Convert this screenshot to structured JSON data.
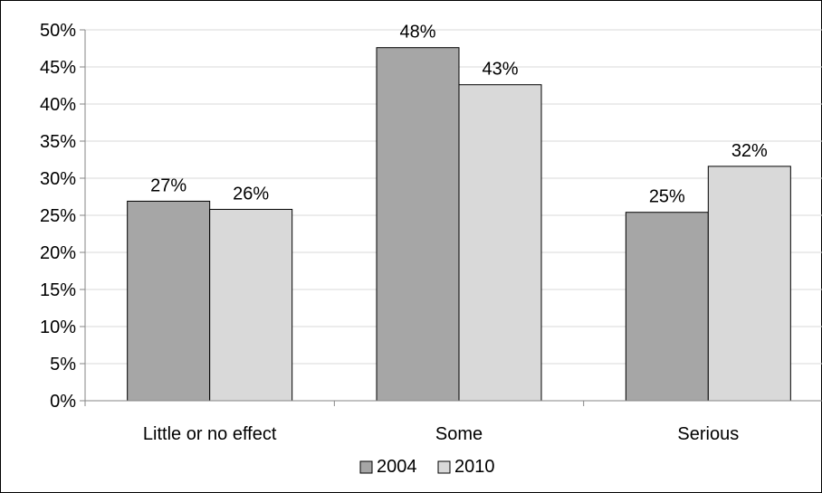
{
  "chart_data": {
    "type": "bar",
    "categories": [
      "Little or no effect",
      "Some",
      "Serious"
    ],
    "series": [
      {
        "name": "2004",
        "values": [
          27,
          48,
          25
        ],
        "labels": [
          "27%",
          "48%",
          "25%"
        ],
        "color": "#a6a6a6"
      },
      {
        "name": "2010",
        "values": [
          26,
          43,
          32
        ],
        "labels": [
          "26%",
          "43%",
          "32%"
        ],
        "color": "#d9d9d9"
      }
    ],
    "bar_values_precise": [
      [
        26.9,
        47.6,
        25.4
      ],
      [
        25.8,
        42.6,
        31.6
      ]
    ],
    "ylim": [
      0,
      50
    ],
    "yticks": [
      0,
      5,
      10,
      15,
      20,
      25,
      30,
      35,
      40,
      45,
      50
    ],
    "ytick_labels": [
      "0%",
      "5%",
      "10%",
      "15%",
      "20%",
      "25%",
      "30%",
      "35%",
      "40%",
      "45%",
      "50%"
    ],
    "grid": true,
    "legend_position": "bottom",
    "gridline_color": "#d9d9d9",
    "bar_border_color": "#000000"
  }
}
